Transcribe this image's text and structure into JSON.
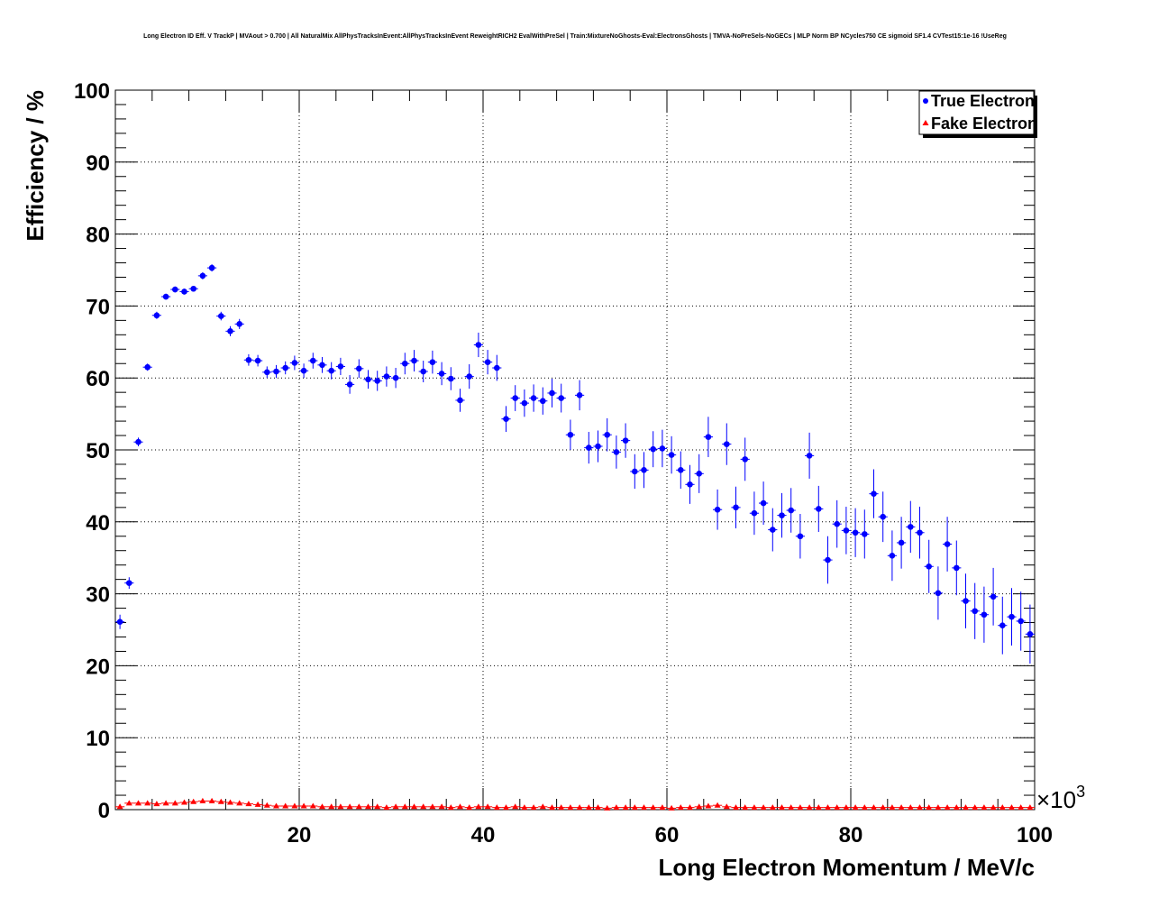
{
  "chart_data": {
    "type": "scatter",
    "title": "Long Electron ID Eff. V TrackP | MVAout > 0.700 | All NaturalMix AllPhysTracksInEvent:AllPhysTracksInEvent ReweightRICH2 EvalWithPreSel | Train:MixtureNoGhosts-Eval:ElectronsGhosts | TMVA-NoPreSels-NoGECs | MLP Norm BP NCycles750 CE sigmoid SF1.4 CVTest15:1e-16 !UseReg",
    "xlabel": "Long Electron Momentum / MeV/c",
    "ylabel": "Efficiency / %",
    "x_multiplier_label": "×10",
    "x_multiplier_exp": "3",
    "xlim": [
      0,
      100
    ],
    "ylim": [
      0,
      100
    ],
    "x_ticks": [
      20,
      40,
      60,
      80,
      100
    ],
    "y_ticks": [
      0,
      10,
      20,
      30,
      40,
      50,
      60,
      70,
      80,
      90,
      100
    ],
    "grid": true,
    "legend_position": "top-right",
    "colors": {
      "true": "#0000ff",
      "fake": "#ff0000"
    },
    "series": [
      {
        "name": "True Electron",
        "marker": "circle",
        "x": [
          0.5,
          1.5,
          2.5,
          3.5,
          4.5,
          5.5,
          6.5,
          7.5,
          8.5,
          9.5,
          10.5,
          11.5,
          12.5,
          13.5,
          14.5,
          15.5,
          16.5,
          17.5,
          18.5,
          19.5,
          20.5,
          21.5,
          22.5,
          23.5,
          24.5,
          25.5,
          26.5,
          27.5,
          28.5,
          29.5,
          30.5,
          31.5,
          32.5,
          33.5,
          34.5,
          35.5,
          36.5,
          37.5,
          38.5,
          39.5,
          40.5,
          41.5,
          42.5,
          43.5,
          44.5,
          45.5,
          46.5,
          47.5,
          48.5,
          49.5,
          50.5,
          51.5,
          52.5,
          53.5,
          54.5,
          55.5,
          56.5,
          57.5,
          58.5,
          59.5,
          60.5,
          61.5,
          62.5,
          63.5,
          64.5,
          65.5,
          66.5,
          67.5,
          68.5,
          69.5,
          70.5,
          71.5,
          72.5,
          73.5,
          74.5,
          75.5,
          76.5,
          77.5,
          78.5,
          79.5,
          80.5,
          81.5,
          82.5,
          83.5,
          84.5,
          85.5,
          86.5,
          87.5,
          88.5,
          89.5,
          90.5,
          91.5,
          92.5,
          93.5,
          94.5,
          95.5,
          96.5,
          97.5,
          98.5,
          99.5
        ],
        "values": [
          26.1,
          31.5,
          51.1,
          61.5,
          68.7,
          71.3,
          72.3,
          72.0,
          72.4,
          74.2,
          75.3,
          68.6,
          66.5,
          67.5,
          62.5,
          62.4,
          60.8,
          60.9,
          61.4,
          62.1,
          61.0,
          62.4,
          61.8,
          61.0,
          61.6,
          59.1,
          61.3,
          59.8,
          59.6,
          60.2,
          60.0,
          62.0,
          62.4,
          60.9,
          62.2,
          60.6,
          59.9,
          56.9,
          60.2,
          64.6,
          62.2,
          61.4,
          54.3,
          57.2,
          56.5,
          57.2,
          56.8,
          57.9,
          57.2,
          52.1,
          57.6,
          50.3,
          50.5,
          52.1,
          49.7,
          51.3,
          47.0,
          47.2,
          50.1,
          50.2,
          49.3,
          47.2,
          45.2,
          46.7,
          51.8,
          41.7,
          50.8,
          42.0,
          48.7,
          41.2,
          42.6,
          38.9,
          40.9,
          41.6,
          38.0,
          49.2,
          41.8,
          34.7,
          39.7,
          38.8,
          38.5,
          38.3,
          43.9,
          40.7,
          35.3,
          37.1,
          39.3,
          38.5,
          33.8,
          30.1,
          36.9,
          33.6,
          29.0,
          27.6,
          27.1,
          29.6,
          25.6,
          26.8,
          26.2,
          24.4
        ],
        "errors": [
          1.0,
          0.8,
          0.6,
          0.5,
          0.5,
          0.4,
          0.4,
          0.4,
          0.4,
          0.5,
          0.5,
          0.6,
          0.7,
          0.7,
          0.8,
          0.8,
          0.8,
          0.9,
          0.9,
          1.0,
          1.0,
          1.1,
          1.1,
          1.2,
          1.2,
          1.3,
          1.3,
          1.3,
          1.4,
          1.4,
          1.4,
          1.5,
          1.5,
          1.5,
          1.6,
          1.6,
          1.6,
          1.6,
          1.7,
          1.7,
          1.7,
          1.8,
          1.8,
          1.8,
          1.9,
          1.9,
          1.9,
          2.0,
          2.0,
          2.1,
          2.1,
          2.2,
          2.2,
          2.3,
          2.3,
          2.4,
          2.4,
          2.5,
          2.5,
          2.6,
          2.6,
          2.6,
          2.7,
          2.7,
          2.8,
          2.8,
          2.9,
          2.9,
          3.0,
          3.0,
          3.0,
          3.0,
          3.1,
          3.1,
          3.1,
          3.2,
          3.2,
          3.3,
          3.3,
          3.3,
          3.4,
          3.4,
          3.4,
          3.5,
          3.5,
          3.6,
          3.6,
          3.6,
          3.7,
          3.7,
          3.8,
          3.8,
          3.8,
          3.9,
          3.9,
          4.0,
          4.0,
          4.0,
          4.1,
          4.1
        ]
      },
      {
        "name": "Fake Electron",
        "marker": "triangle",
        "x": [
          0.5,
          1.5,
          2.5,
          3.5,
          4.5,
          5.5,
          6.5,
          7.5,
          8.5,
          9.5,
          10.5,
          11.5,
          12.5,
          13.5,
          14.5,
          15.5,
          16.5,
          17.5,
          18.5,
          19.5,
          20.5,
          21.5,
          22.5,
          23.5,
          24.5,
          25.5,
          26.5,
          27.5,
          28.5,
          29.5,
          30.5,
          31.5,
          32.5,
          33.5,
          34.5,
          35.5,
          36.5,
          37.5,
          38.5,
          39.5,
          40.5,
          41.5,
          42.5,
          43.5,
          44.5,
          45.5,
          46.5,
          47.5,
          48.5,
          49.5,
          50.5,
          51.5,
          52.5,
          53.5,
          54.5,
          55.5,
          56.5,
          57.5,
          58.5,
          59.5,
          60.5,
          61.5,
          62.5,
          63.5,
          64.5,
          65.5,
          66.5,
          67.5,
          68.5,
          69.5,
          70.5,
          71.5,
          72.5,
          73.5,
          74.5,
          75.5,
          76.5,
          77.5,
          78.5,
          79.5,
          80.5,
          81.5,
          82.5,
          83.5,
          84.5,
          85.5,
          86.5,
          87.5,
          88.5,
          89.5,
          90.5,
          91.5,
          92.5,
          93.5,
          94.5,
          95.5,
          96.5,
          97.5,
          98.5,
          99.5
        ],
        "values": [
          0.4,
          0.9,
          0.9,
          0.9,
          0.8,
          0.9,
          0.9,
          1.0,
          1.1,
          1.2,
          1.2,
          1.1,
          1.0,
          0.9,
          0.8,
          0.7,
          0.6,
          0.5,
          0.5,
          0.5,
          0.5,
          0.5,
          0.4,
          0.4,
          0.4,
          0.4,
          0.4,
          0.4,
          0.4,
          0.3,
          0.4,
          0.4,
          0.4,
          0.4,
          0.4,
          0.4,
          0.3,
          0.4,
          0.3,
          0.4,
          0.4,
          0.3,
          0.3,
          0.4,
          0.3,
          0.3,
          0.4,
          0.3,
          0.3,
          0.3,
          0.3,
          0.3,
          0.3,
          0.2,
          0.3,
          0.3,
          0.3,
          0.3,
          0.3,
          0.3,
          0.2,
          0.3,
          0.3,
          0.4,
          0.5,
          0.6,
          0.4,
          0.3,
          0.3,
          0.3,
          0.3,
          0.3,
          0.3,
          0.3,
          0.3,
          0.3,
          0.3,
          0.3,
          0.3,
          0.3,
          0.3,
          0.3,
          0.3,
          0.3,
          0.3,
          0.3,
          0.3,
          0.3,
          0.3,
          0.3,
          0.3,
          0.3,
          0.3,
          0.3,
          0.3,
          0.3,
          0.3,
          0.3,
          0.3,
          0.3
        ],
        "errors": [
          0.1,
          0.1,
          0.1,
          0.1,
          0.1,
          0.1,
          0.1,
          0.1,
          0.1,
          0.1,
          0.1,
          0.1,
          0.1,
          0.1,
          0.1,
          0.1,
          0.1,
          0.1,
          0.1,
          0.1,
          0.1,
          0.1,
          0.1,
          0.1,
          0.1,
          0.1,
          0.1,
          0.1,
          0.1,
          0.1,
          0.1,
          0.1,
          0.1,
          0.1,
          0.1,
          0.1,
          0.1,
          0.1,
          0.1,
          0.1,
          0.1,
          0.1,
          0.1,
          0.1,
          0.1,
          0.1,
          0.1,
          0.1,
          0.1,
          0.1,
          0.1,
          0.1,
          0.1,
          0.1,
          0.1,
          0.1,
          0.1,
          0.1,
          0.1,
          0.1,
          0.1,
          0.1,
          0.1,
          0.1,
          0.1,
          0.1,
          0.1,
          0.1,
          0.1,
          0.1,
          0.1,
          0.1,
          0.1,
          0.1,
          0.1,
          0.1,
          0.1,
          0.1,
          0.1,
          0.1,
          0.1,
          0.1,
          0.1,
          0.1,
          0.1,
          0.1,
          0.1,
          0.1,
          0.1,
          0.1,
          0.1,
          0.1,
          0.1,
          0.1,
          0.1,
          0.1,
          0.1,
          0.1,
          0.1,
          0.1
        ]
      }
    ]
  }
}
